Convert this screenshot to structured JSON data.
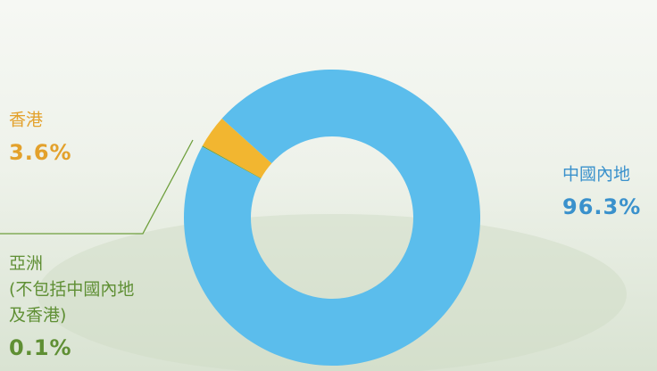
{
  "chart_data": {
    "type": "pie",
    "categories": [
      [
        "香港"
      ],
      [
        "亞洲",
        "(不包括中國內地",
        "及香港)"
      ],
      [
        "中國內地"
      ]
    ],
    "values": [
      3.6,
      0.1,
      96.3
    ],
    "value_labels": [
      "3.6%",
      "0.1%",
      "96.3%"
    ],
    "colors": [
      "#f2b630",
      "#6e9f3c",
      "#5bbdec"
    ],
    "label_colors": [
      "#e3a12b",
      "#5f8f34",
      "#3a91cc"
    ]
  }
}
